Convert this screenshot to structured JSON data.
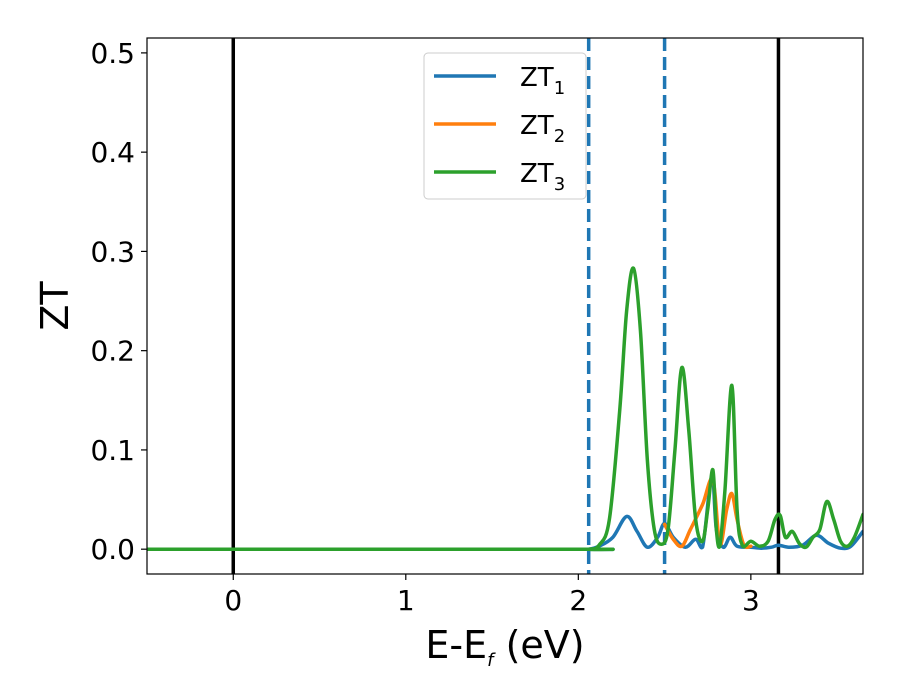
{
  "chart_data": {
    "type": "line",
    "xlabel": {
      "main": "E-E",
      "sub": "f",
      "tail": " (eV)"
    },
    "ylabel": "ZT",
    "xlim": [
      -0.5,
      3.65
    ],
    "ylim": [
      -0.025,
      0.515
    ],
    "xticks": [
      0,
      1,
      2,
      3
    ],
    "xtick_labels": [
      "0",
      "1",
      "2",
      "3"
    ],
    "yticks": [
      0.0,
      0.1,
      0.2,
      0.3,
      0.4,
      0.5
    ],
    "ytick_labels": [
      "0.0",
      "0.1",
      "0.2",
      "0.3",
      "0.4",
      "0.5"
    ],
    "grid": false,
    "legend_position": "top-center",
    "vlines": [
      {
        "x": 0.0,
        "color": "#000000",
        "style": "solid"
      },
      {
        "x": 3.16,
        "color": "#000000",
        "style": "solid"
      },
      {
        "x": 2.06,
        "color": "#1f77b4",
        "style": "dashed"
      },
      {
        "x": 2.5,
        "color": "#1f77b4",
        "style": "dashed"
      }
    ],
    "series": [
      {
        "name": "ZT",
        "subscript": "1",
        "color": "#1f77b4",
        "x": [
          -0.5,
          2.0,
          2.06,
          2.12,
          2.2,
          2.28,
          2.34,
          2.4,
          2.46,
          2.5,
          2.55,
          2.62,
          2.68,
          2.72,
          2.76,
          2.78,
          2.8,
          2.84,
          2.88,
          2.92,
          3.0,
          3.06,
          3.12,
          3.16,
          3.22,
          3.3,
          3.38,
          3.45,
          3.52,
          3.58,
          3.65
        ],
        "y": [
          0.0,
          0.0,
          0.0,
          0.003,
          0.012,
          0.033,
          0.018,
          0.002,
          0.012,
          0.026,
          0.012,
          0.002,
          0.01,
          0.002,
          0.06,
          0.072,
          0.02,
          0.002,
          0.012,
          0.003,
          0.002,
          0.001,
          0.002,
          0.004,
          0.002,
          0.004,
          0.014,
          0.006,
          0.001,
          0.003,
          0.018
        ]
      },
      {
        "name": "ZT",
        "subscript": "2",
        "color": "#ff7f0e",
        "x": [
          2.5,
          2.55,
          2.6,
          2.65,
          2.72,
          2.78,
          2.82,
          2.86,
          2.89,
          2.92,
          2.96,
          3.0
        ],
        "y": [
          0.025,
          0.01,
          0.003,
          0.02,
          0.045,
          0.07,
          0.005,
          0.04,
          0.056,
          0.03,
          0.004,
          0.003
        ]
      },
      {
        "name": "ZT",
        "subscript": "3",
        "color": "#2ca02c",
        "x": [
          -0.5,
          2.0,
          2.06,
          2.12,
          2.18,
          2.24,
          2.28,
          2.32,
          2.36,
          2.4,
          2.44,
          2.48,
          2.52,
          2.56,
          2.6,
          2.64,
          2.68,
          2.72,
          2.75,
          2.78,
          2.8,
          2.82,
          2.85,
          2.89,
          2.92,
          2.95,
          3.0,
          3.05,
          3.1,
          3.14,
          3.17,
          3.2,
          3.24,
          3.28,
          3.32,
          3.36,
          3.4,
          3.44,
          3.48,
          3.52,
          3.56,
          3.6,
          3.65
        ],
        "y": [
          0.0,
          0.0,
          0.0,
          0.004,
          0.03,
          0.14,
          0.24,
          0.283,
          0.22,
          0.09,
          0.02,
          0.005,
          0.02,
          0.1,
          0.183,
          0.12,
          0.03,
          0.008,
          0.04,
          0.08,
          0.02,
          0.003,
          0.06,
          0.165,
          0.04,
          0.004,
          0.008,
          0.003,
          0.008,
          0.03,
          0.034,
          0.012,
          0.018,
          0.006,
          0.002,
          0.012,
          0.02,
          0.048,
          0.03,
          0.008,
          0.003,
          0.012,
          0.035
        ]
      }
    ]
  }
}
